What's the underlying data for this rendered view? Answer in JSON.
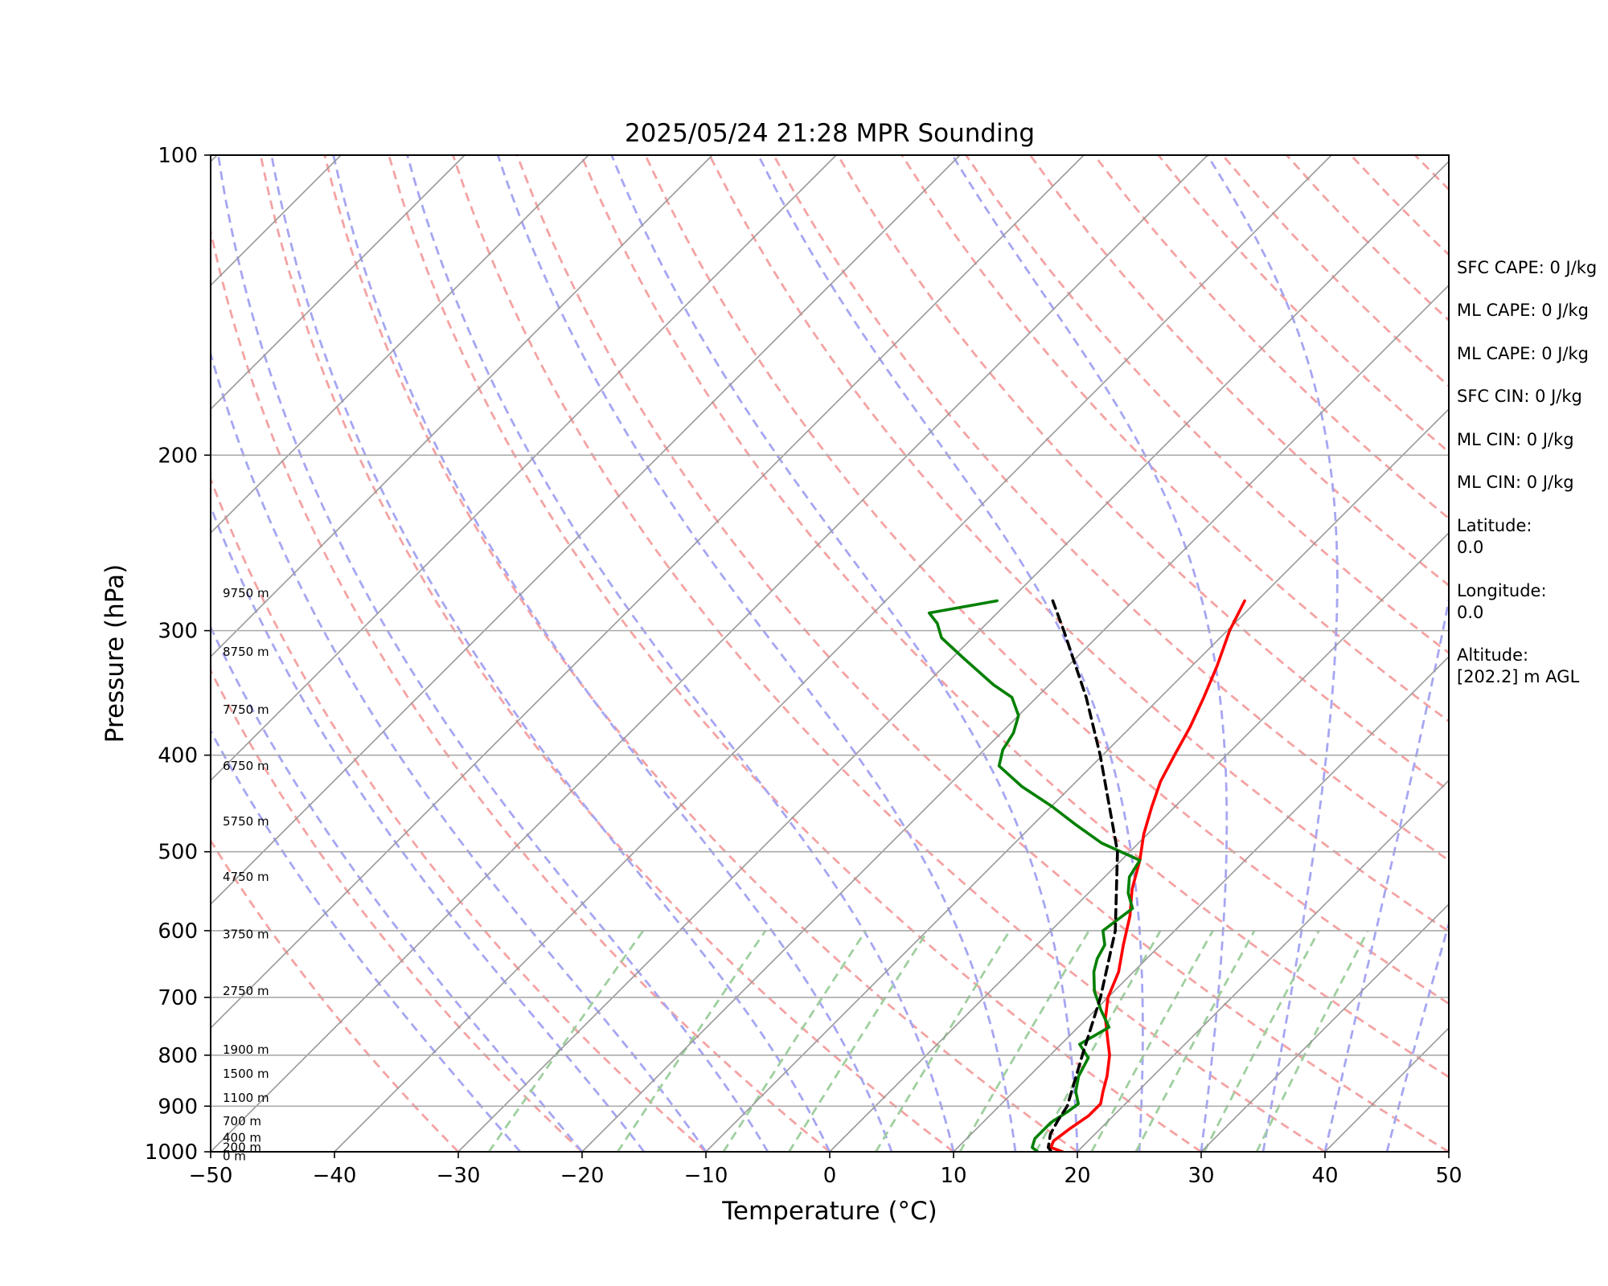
{
  "chart_data": {
    "type": "line",
    "title": "2025/05/24 21:28 MPR Sounding",
    "xlabel": "Temperature (°C)",
    "ylabel": "Pressure (hPa)",
    "xlim": [
      -50,
      50
    ],
    "ylim": [
      1000,
      100
    ],
    "y_scale": "log",
    "x_ticks": [
      "−50",
      "−40",
      "−30",
      "−20",
      "−10",
      "0",
      "10",
      "20",
      "30",
      "40",
      "50"
    ],
    "y_ticks": [
      "100",
      "200",
      "300",
      "400",
      "500",
      "600",
      "700",
      "800",
      "900",
      "1000"
    ],
    "height_labels": [
      {
        "label": "9750 m",
        "pressure": 275
      },
      {
        "label": "8750 m",
        "pressure": 315
      },
      {
        "label": "7750 m",
        "pressure": 360
      },
      {
        "label": "6750 m",
        "pressure": 410
      },
      {
        "label": "5750 m",
        "pressure": 466
      },
      {
        "label": "4750 m",
        "pressure": 530
      },
      {
        "label": "3750 m",
        "pressure": 605
      },
      {
        "label": "2750 m",
        "pressure": 690
      },
      {
        "label": "1900 m",
        "pressure": 790
      },
      {
        "label": "1500 m",
        "pressure": 835
      },
      {
        "label": "1100 m",
        "pressure": 883
      },
      {
        "label": "700 m",
        "pressure": 932
      },
      {
        "label": "400 m",
        "pressure": 968
      },
      {
        "label": "200 m",
        "pressure": 990
      },
      {
        "label": "0 m",
        "pressure": 1010
      }
    ],
    "series": [
      {
        "color": "#ff0000",
        "style": "solid",
        "points": [
          [
            1000,
            18.8
          ],
          [
            990,
            17.5
          ],
          [
            975,
            17.2
          ],
          [
            950,
            17.5
          ],
          [
            920,
            18.0
          ],
          [
            895,
            18.0
          ],
          [
            870,
            17.2
          ],
          [
            840,
            16.3
          ],
          [
            800,
            14.8
          ],
          [
            770,
            13.3
          ],
          [
            735,
            11.5
          ],
          [
            700,
            10.0
          ],
          [
            660,
            8.8
          ],
          [
            620,
            7.0
          ],
          [
            580,
            5.2
          ],
          [
            545,
            3.2
          ],
          [
            510,
            1.5
          ],
          [
            480,
            -0.3
          ],
          [
            450,
            -1.9
          ],
          [
            425,
            -3.2
          ],
          [
            400,
            -4.2
          ],
          [
            375,
            -5.2
          ],
          [
            350,
            -6.5
          ],
          [
            325,
            -8.0
          ],
          [
            300,
            -9.8
          ],
          [
            280,
            -11.0
          ]
        ]
      },
      {
        "color": "#008000",
        "style": "solid",
        "points": [
          [
            1000,
            16.8
          ],
          [
            990,
            16.0
          ],
          [
            970,
            15.5
          ],
          [
            950,
            15.5
          ],
          [
            935,
            15.5
          ],
          [
            910,
            16.0
          ],
          [
            895,
            16.2
          ],
          [
            870,
            15.0
          ],
          [
            840,
            14.0
          ],
          [
            805,
            13.3
          ],
          [
            780,
            11.5
          ],
          [
            750,
            12.5
          ],
          [
            720,
            10.4
          ],
          [
            690,
            8.4
          ],
          [
            660,
            6.8
          ],
          [
            640,
            6.0
          ],
          [
            620,
            5.5
          ],
          [
            600,
            4.2
          ],
          [
            570,
            4.8
          ],
          [
            550,
            3.2
          ],
          [
            530,
            2.0
          ],
          [
            510,
            1.5
          ],
          [
            490,
            -3.0
          ],
          [
            470,
            -6.5
          ],
          [
            450,
            -10.0
          ],
          [
            430,
            -14.0
          ],
          [
            410,
            -17.5
          ],
          [
            395,
            -18.5
          ],
          [
            380,
            -19.0
          ],
          [
            365,
            -20.0
          ],
          [
            350,
            -22.0
          ],
          [
            340,
            -24.5
          ],
          [
            320,
            -29.0
          ],
          [
            305,
            -32.5
          ],
          [
            295,
            -34.0
          ],
          [
            288,
            -35.5
          ],
          [
            280,
            -31.0
          ]
        ]
      },
      {
        "color": "#000000",
        "style": "dashed",
        "points": [
          [
            1000,
            17.9
          ],
          [
            990,
            17.3
          ],
          [
            960,
            16.4
          ],
          [
            930,
            15.9
          ],
          [
            900,
            15.5
          ],
          [
            800,
            12.6
          ],
          [
            700,
            9.4
          ],
          [
            600,
            5.2
          ],
          [
            500,
            -1.0
          ],
          [
            400,
            -10.2
          ],
          [
            350,
            -16.0
          ],
          [
            300,
            -23.2
          ],
          [
            280,
            -26.5
          ]
        ]
      }
    ]
  },
  "side_panel": {
    "sfc_cape": "SFC CAPE: 0 J/kg",
    "ml_cape_1": "ML CAPE: 0 J/kg",
    "ml_cape_2": "ML CAPE: 0 J/kg",
    "sfc_cin": "SFC CIN: 0 J/kg",
    "ml_cin_1": "ML CIN: 0 J/kg",
    "ml_cin_2": "ML CIN: 0 J/kg",
    "latitude_label": "Latitude:",
    "latitude_value": "0.0",
    "longitude_label": "Longitude:",
    "longitude_value": "0.0",
    "altitude_label": "Altitude:",
    "altitude_value": "[202.2] m AGL"
  },
  "colors": {
    "temperature": "#ff0000",
    "dewpoint": "#008000",
    "parcel": "#000000",
    "dry_adiabat": "#f4a3a3",
    "moist_adiabat": "#a6a6f2",
    "mixing_ratio": "#9fcf9f",
    "isotherm": "#999999",
    "isobar": "#aaaaaa"
  }
}
